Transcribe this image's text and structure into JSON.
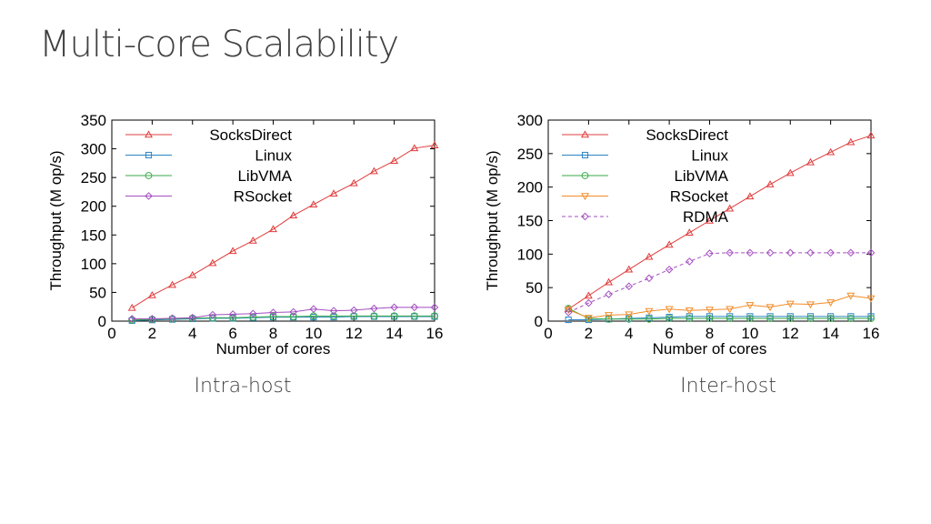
{
  "slide": {
    "title": "Multi-core Scalability",
    "captions": [
      "Intra-host",
      "Inter-host"
    ]
  },
  "chart_data": [
    {
      "type": "line",
      "title": "",
      "xlabel": "Number of cores",
      "ylabel": "Throughput (M op/s)",
      "xlim": [
        0,
        16
      ],
      "ylim": [
        0,
        350
      ],
      "xticks": [
        0,
        2,
        4,
        6,
        8,
        10,
        12,
        14,
        16
      ],
      "yticks": [
        0,
        50,
        100,
        150,
        200,
        250,
        300,
        350
      ],
      "grid": false,
      "legend_position": "top-left",
      "x": [
        1,
        2,
        3,
        4,
        5,
        6,
        7,
        8,
        9,
        10,
        11,
        12,
        13,
        14,
        15,
        16
      ],
      "series": [
        {
          "name": "SocksDirect",
          "color": "#e03c3c",
          "marker": "triangle",
          "dash": false,
          "values": [
            23,
            45,
            63,
            80,
            101,
            122,
            140,
            160,
            184,
            203,
            222,
            240,
            261,
            279,
            301,
            306
          ]
        },
        {
          "name": "Linux",
          "color": "#2a84c4",
          "marker": "square",
          "dash": false,
          "values": [
            1,
            2,
            3,
            4,
            5,
            5,
            6,
            7,
            7,
            7,
            7,
            8,
            8,
            8,
            8,
            8
          ]
        },
        {
          "name": "LibVMA",
          "color": "#3aaa4a",
          "marker": "circle",
          "dash": false,
          "values": [
            2,
            3,
            4,
            5,
            6,
            6,
            7,
            8,
            8,
            9,
            9,
            9,
            9,
            9,
            9,
            9
          ]
        },
        {
          "name": "RSocket",
          "color": "#a44fc0",
          "marker": "diamond",
          "dash": false,
          "values": [
            4,
            4,
            5,
            6,
            11,
            12,
            13,
            15,
            16,
            21,
            18,
            19,
            22,
            24,
            24,
            24
          ]
        }
      ]
    },
    {
      "type": "line",
      "title": "",
      "xlabel": "Number of cores",
      "ylabel": "Throughput (M op/s)",
      "xlim": [
        0,
        16
      ],
      "ylim": [
        0,
        300
      ],
      "xticks": [
        0,
        2,
        4,
        6,
        8,
        10,
        12,
        14,
        16
      ],
      "yticks": [
        0,
        50,
        100,
        150,
        200,
        250,
        300
      ],
      "grid": false,
      "legend_position": "top-left",
      "x": [
        1,
        2,
        3,
        4,
        5,
        6,
        7,
        8,
        9,
        10,
        11,
        12,
        13,
        14,
        15,
        16
      ],
      "series": [
        {
          "name": "SocksDirect",
          "color": "#e03c3c",
          "marker": "triangle",
          "dash": false,
          "values": [
            18,
            38,
            58,
            77,
            96,
            114,
            132,
            150,
            168,
            186,
            204,
            221,
            237,
            252,
            267,
            277
          ]
        },
        {
          "name": "Linux",
          "color": "#2a84c4",
          "marker": "square",
          "dash": false,
          "values": [
            2,
            2,
            3,
            4,
            5,
            6,
            7,
            7,
            7,
            7,
            7,
            7,
            7,
            7,
            7,
            7
          ]
        },
        {
          "name": "LibVMA",
          "color": "#3aaa4a",
          "marker": "circle",
          "dash": false,
          "values": [
            19,
            4,
            3,
            3,
            3,
            4,
            4,
            4,
            4,
            4,
            4,
            4,
            4,
            4,
            4,
            4
          ]
        },
        {
          "name": "RSocket",
          "color": "#f28c28",
          "marker": "triangle-down",
          "dash": false,
          "values": [
            17,
            5,
            9,
            10,
            15,
            18,
            16,
            17,
            18,
            24,
            21,
            26,
            25,
            28,
            38,
            34
          ]
        },
        {
          "name": "RDMA",
          "color": "#a44fc0",
          "marker": "diamond",
          "dash": true,
          "values": [
            13,
            27,
            40,
            52,
            64,
            77,
            89,
            101,
            102,
            102,
            102,
            102,
            102,
            102,
            102,
            102
          ]
        }
      ]
    }
  ]
}
